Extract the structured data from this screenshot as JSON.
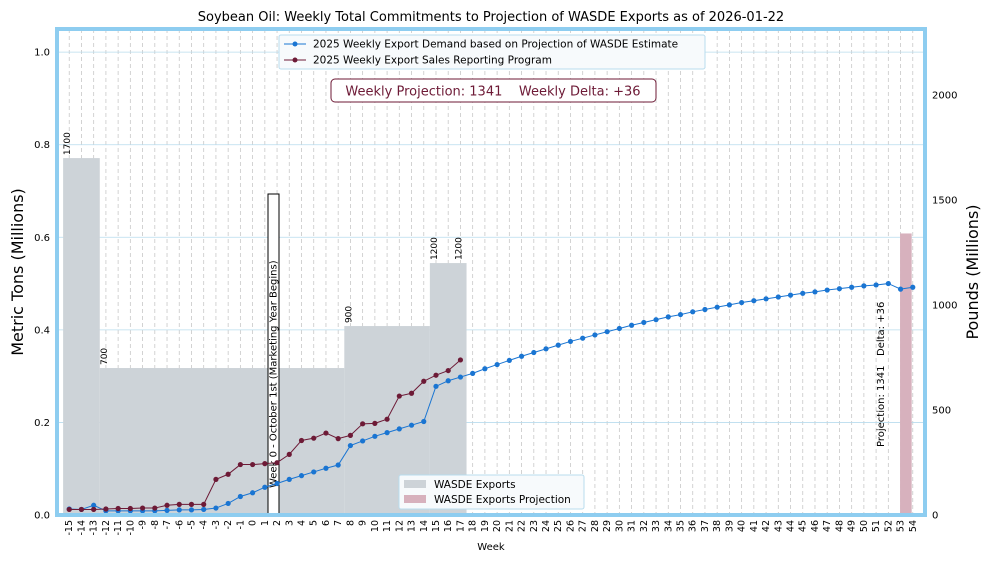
{
  "chart_data": {
    "type": "line",
    "title": "Soybean Oil: Weekly Total Commitments to Projection of WASDE Exports as of 2026-01-22",
    "xlabel": "Week",
    "ylabel_left": "Metric Tons (Millions)",
    "ylabel_right": "Pounds (Millions)",
    "xlim": [
      -16,
      55
    ],
    "ylim_left": [
      0,
      1.05
    ],
    "ylim_right": [
      0,
      2314.85
    ],
    "left_ticks": [
      "0.0",
      "0.2",
      "0.4",
      "0.6",
      "0.8",
      "1.0"
    ],
    "right_ticks": [
      "0",
      "500",
      "1000",
      "1500",
      "2000"
    ],
    "weeks": [
      -15,
      -14,
      -13,
      -12,
      -11,
      -10,
      -9,
      -8,
      -7,
      -6,
      -5,
      -4,
      -3,
      -2,
      -1,
      0,
      1,
      2,
      3,
      4,
      5,
      6,
      7,
      8,
      9,
      10,
      11,
      12,
      13,
      14,
      15,
      16,
      17,
      18,
      19,
      20,
      21,
      22,
      23,
      24,
      25,
      26,
      27,
      28,
      29,
      30,
      31,
      32,
      33,
      34,
      35,
      36,
      37,
      38,
      39,
      40,
      41,
      42,
      43,
      44,
      45,
      46,
      47,
      48,
      49,
      50,
      51,
      52,
      53,
      54
    ],
    "wasde_exports": {
      "name": "WASDE Exports",
      "unit": "Pounds (Millions)",
      "segments": [
        {
          "from": -15,
          "to": -12,
          "value": 1700
        },
        {
          "from": -12,
          "to": 8,
          "value": 700
        },
        {
          "from": 8,
          "to": 15,
          "value": 900
        },
        {
          "from": 15,
          "to": 18,
          "value": 1200
        }
      ],
      "labels": [
        {
          "week": -15,
          "text": "1700"
        },
        {
          "week": -12,
          "text": "700"
        },
        {
          "week": 8,
          "text": "900"
        },
        {
          "week": 15,
          "text": "1200"
        },
        {
          "week": 17,
          "text": "1200"
        }
      ]
    },
    "wasde_projection": {
      "name": "WASDE Exports Projection",
      "week": 53,
      "value": 1341,
      "unit": "Pounds (Millions)"
    },
    "series": [
      {
        "name": "2025 Weekly Export Demand based on Projection of WASDE Estimate",
        "color": "#1a75d2",
        "unit": "Metric Tons (Millions)",
        "x": [
          -15,
          -14,
          -13,
          -12,
          -11,
          -10,
          -9,
          -8,
          -7,
          -6,
          -5,
          -4,
          -3,
          -2,
          -1,
          0,
          1,
          2,
          3,
          4,
          5,
          6,
          7,
          8,
          9,
          10,
          11,
          12,
          13,
          14,
          15,
          16,
          17,
          18,
          19,
          20,
          21,
          22,
          23,
          24,
          25,
          26,
          27,
          28,
          29,
          30,
          31,
          32,
          33,
          34,
          35,
          36,
          37,
          38,
          39,
          40,
          41,
          42,
          43,
          44,
          45,
          46,
          47,
          48,
          49,
          50,
          51,
          52,
          53,
          54
        ],
        "values": [
          0.013,
          0.012,
          0.021,
          0.009,
          0.009,
          0.009,
          0.009,
          0.009,
          0.01,
          0.011,
          0.011,
          0.012,
          0.015,
          0.025,
          0.04,
          0.048,
          0.06,
          0.068,
          0.077,
          0.085,
          0.093,
          0.101,
          0.108,
          0.15,
          0.16,
          0.17,
          0.178,
          0.186,
          0.194,
          0.202,
          0.278,
          0.29,
          0.298,
          0.306,
          0.316,
          0.325,
          0.334,
          0.343,
          0.351,
          0.359,
          0.367,
          0.375,
          0.382,
          0.389,
          0.396,
          0.403,
          0.41,
          0.416,
          0.422,
          0.428,
          0.433,
          0.439,
          0.444,
          0.449,
          0.454,
          0.459,
          0.463,
          0.467,
          0.471,
          0.475,
          0.479,
          0.482,
          0.486,
          0.489,
          0.492,
          0.495,
          0.497,
          0.5,
          0.488,
          0.492
        ]
      },
      {
        "name": "2025 Weekly Export Sales Reporting Program",
        "color": "#6d1a36",
        "unit": "Metric Tons (Millions)",
        "x": [
          -15,
          -14,
          -13,
          -12,
          -11,
          -10,
          -9,
          -8,
          -7,
          -6,
          -5,
          -4,
          -3,
          -2,
          -1,
          0,
          1,
          2,
          3,
          4,
          5,
          6,
          7,
          8,
          9,
          10,
          11,
          12,
          13,
          14,
          15,
          16,
          17
        ],
        "values": [
          0.012,
          0.012,
          0.012,
          0.013,
          0.014,
          0.014,
          0.015,
          0.015,
          0.021,
          0.023,
          0.023,
          0.023,
          0.077,
          0.088,
          0.109,
          0.109,
          0.111,
          0.113,
          0.131,
          0.161,
          0.166,
          0.177,
          0.165,
          0.172,
          0.197,
          0.198,
          0.207,
          0.257,
          0.263,
          0.289,
          0.302,
          0.312,
          0.335
        ]
      }
    ],
    "annotations": {
      "info_box": "Weekly Projection: 1341    Weekly Delta: +36",
      "week0_label": "Week 0 - October 1st (Marketing Year Begins)",
      "projection_label": "Projection: 1341",
      "delta_label": "Delta: +36"
    },
    "legend_top": [
      "2025 Weekly Export Demand based on Projection of WASDE Estimate",
      "2025 Weekly Export Sales Reporting Program"
    ],
    "legend_bottom": [
      "WASDE Exports",
      "WASDE Exports Projection"
    ],
    "colors": {
      "frame": "#8ecdf0",
      "wasde_bar": "#cdd3d8",
      "projection_bar": "#d7b1bd",
      "info_text": "#6d1a36",
      "grid": "#b8dcee"
    }
  }
}
